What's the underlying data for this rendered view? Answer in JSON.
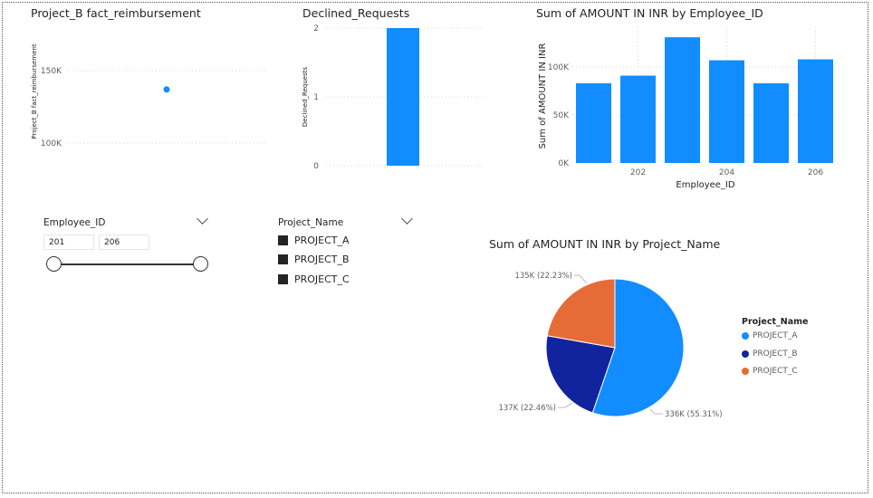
{
  "charts": {
    "scatter": {
      "title": "Project_B fact_reimbursement",
      "ylabel": "Project_B fact_reimbursement",
      "ticks": [
        "150K",
        "100K"
      ]
    },
    "declined": {
      "title": "Declined_Requests",
      "ylabel": "Declined_Requests",
      "ticks": [
        "2",
        "1",
        "0"
      ]
    },
    "amount_by_emp": {
      "title": "Sum of AMOUNT IN INR by Employee_ID",
      "ylabel": "Sum of AMOUNT IN INR",
      "xlabel": "Employee_ID",
      "yticks": [
        "100K",
        "50K",
        "0K"
      ],
      "xticks": [
        "202",
        "204",
        "206"
      ]
    },
    "pie": {
      "title": "Sum of AMOUNT IN INR by Project_Name",
      "legend_title": "Project_Name",
      "labels": [
        "336K (55.31%)",
        "137K (22.46%)",
        "135K (22.23%)"
      ]
    }
  },
  "slicers": {
    "employee": {
      "title": "Employee_ID",
      "min": "201",
      "max": "206"
    },
    "project": {
      "title": "Project_Name",
      "options": [
        "PROJECT_A",
        "PROJECT_B",
        "PROJECT_C"
      ]
    }
  },
  "chart_data": [
    {
      "type": "scatter",
      "title": "Project_B fact_reimbursement",
      "ylabel": "Project_B fact_reimbursement",
      "points": [
        {
          "y": 137000
        }
      ],
      "color": "#118DFF"
    },
    {
      "type": "bar",
      "title": "Declined_Requests",
      "ylabel": "Declined_Requests",
      "values": [
        2
      ],
      "ylim": [
        0,
        2
      ],
      "color": "#118DFF"
    },
    {
      "type": "bar",
      "title": "Sum of AMOUNT IN INR by Employee_ID",
      "xlabel": "Employee_ID",
      "ylabel": "Sum of AMOUNT IN INR",
      "categories": [
        "201",
        "202",
        "203",
        "204",
        "205",
        "206"
      ],
      "values": [
        83000,
        91000,
        131000,
        107000,
        83000,
        108000
      ],
      "ylim": [
        0,
        140000
      ],
      "color": "#118DFF"
    },
    {
      "type": "pie",
      "title": "Sum of AMOUNT IN INR by Project_Name",
      "legend_title": "Project_Name",
      "categories": [
        "PROJECT_A",
        "PROJECT_B",
        "PROJECT_C"
      ],
      "values": [
        336000,
        137000,
        135000
      ],
      "percents": [
        55.31,
        22.46,
        22.23
      ],
      "colors": [
        "#118DFF",
        "#12239E",
        "#E66C37"
      ],
      "legend": "right"
    }
  ]
}
